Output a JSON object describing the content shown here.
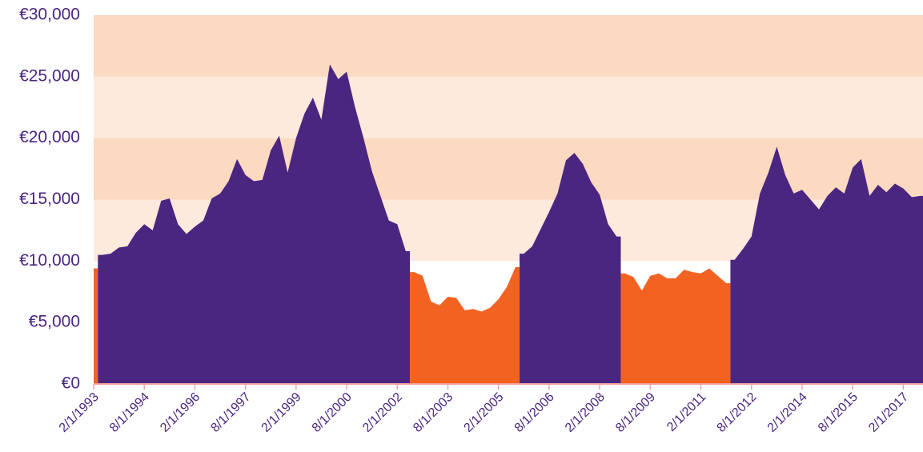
{
  "chart_data": {
    "type": "area",
    "x": [
      "2/1/1993",
      "5/1/1993",
      "8/1/1993",
      "11/1/1993",
      "2/1/1994",
      "5/1/1994",
      "8/1/1994",
      "11/1/1994",
      "2/1/1995",
      "5/1/1995",
      "8/1/1995",
      "11/1/1995",
      "2/1/1996",
      "5/1/1996",
      "8/1/1996",
      "11/1/1996",
      "2/1/1997",
      "5/1/1997",
      "8/1/1997",
      "11/1/1997",
      "2/1/1998",
      "5/1/1998",
      "8/1/1998",
      "11/1/1998",
      "2/1/1999",
      "5/1/1999",
      "8/1/1999",
      "11/1/1999",
      "2/1/2000",
      "5/1/2000",
      "8/1/2000",
      "11/1/2000",
      "2/1/2001",
      "5/1/2001",
      "8/1/2001",
      "11/1/2001",
      "2/1/2002",
      "5/1/2002",
      "8/1/2002",
      "11/1/2002",
      "2/1/2003",
      "5/1/2003",
      "8/1/2003",
      "11/1/2003",
      "2/1/2004",
      "5/1/2004",
      "8/1/2004",
      "11/1/2004",
      "2/1/2005",
      "5/1/2005",
      "8/1/2005",
      "11/1/2005",
      "2/1/2006",
      "5/1/2006",
      "8/1/2006",
      "11/1/2006",
      "2/1/2007",
      "5/1/2007",
      "8/1/2007",
      "11/1/2007",
      "2/1/2008",
      "5/1/2008",
      "8/1/2008",
      "11/1/2008",
      "2/1/2009",
      "5/1/2009",
      "8/1/2009",
      "11/1/2009",
      "2/1/2010",
      "5/1/2010",
      "8/1/2010",
      "11/1/2010",
      "2/1/2011",
      "5/1/2011",
      "8/1/2011",
      "11/1/2011",
      "2/1/2012",
      "5/1/2012",
      "8/1/2012",
      "11/1/2012",
      "2/1/2013",
      "5/1/2013",
      "8/1/2013",
      "11/1/2013",
      "2/1/2014",
      "5/1/2014",
      "8/1/2014",
      "11/1/2014",
      "2/1/2015",
      "5/1/2015",
      "8/1/2015",
      "11/1/2015",
      "2/1/2016",
      "5/1/2016",
      "8/1/2016",
      "11/1/2016",
      "2/1/2017",
      "5/1/2017",
      "8/1/2017"
    ],
    "values": [
      9400,
      10500,
      10600,
      11100,
      11200,
      12300,
      13000,
      12500,
      14900,
      15100,
      13000,
      12200,
      12800,
      13300,
      15100,
      15500,
      16500,
      18300,
      17000,
      16500,
      16600,
      19000,
      20200,
      17200,
      20000,
      22000,
      23300,
      21500,
      26000,
      24800,
      25400,
      22500,
      20000,
      17300,
      15300,
      13300,
      13000,
      10800,
      9100,
      8800,
      6700,
      6400,
      7100,
      7000,
      6000,
      6100,
      5900,
      6200,
      6900,
      7900,
      9500,
      10600,
      11200,
      12600,
      14000,
      15500,
      18200,
      18800,
      17900,
      16400,
      15400,
      13000,
      12000,
      9000,
      8700,
      7600,
      8800,
      9000,
      8600,
      8600,
      9300,
      9100,
      9000,
      9400,
      8800,
      8200,
      10100,
      11000,
      12000,
      15500,
      17200,
      19300,
      17000,
      15500,
      15800,
      15000,
      14200,
      15300,
      16000,
      15500,
      17600,
      18300,
      15300,
      16200,
      15600,
      16300,
      15900,
      15200,
      15300
    ],
    "threshold": 10000,
    "above_color": "#4a2680",
    "below_color": "#f26322",
    "band_colors": [
      "#ffffff",
      "#ffffff",
      "#fdeadc",
      "#fcd9c1",
      "#fdeadc",
      "#fcd9c1"
    ],
    "xlim": [
      "2/1/1993",
      "9/1/2017"
    ],
    "xticks": [
      "2/1/1993",
      "8/1/1994",
      "2/1/1996",
      "8/1/1997",
      "2/1/1999",
      "8/1/2000",
      "2/1/2002",
      "8/1/2003",
      "2/1/2005",
      "8/1/2006",
      "2/1/2008",
      "8/1/2009",
      "2/1/2011",
      "8/1/2012",
      "2/1/2014",
      "8/1/2015",
      "2/1/2017"
    ],
    "ylim": [
      0,
      30000
    ],
    "yticks": [
      {
        "value": 0,
        "label": "€0"
      },
      {
        "value": 5000,
        "label": "€5,000"
      },
      {
        "value": 10000,
        "label": "€10,000"
      },
      {
        "value": 15000,
        "label": "€15,000"
      },
      {
        "value": 20000,
        "label": "€20,000"
      },
      {
        "value": 25000,
        "label": "€25,000"
      },
      {
        "value": 30000,
        "label": "€30,000"
      }
    ]
  }
}
